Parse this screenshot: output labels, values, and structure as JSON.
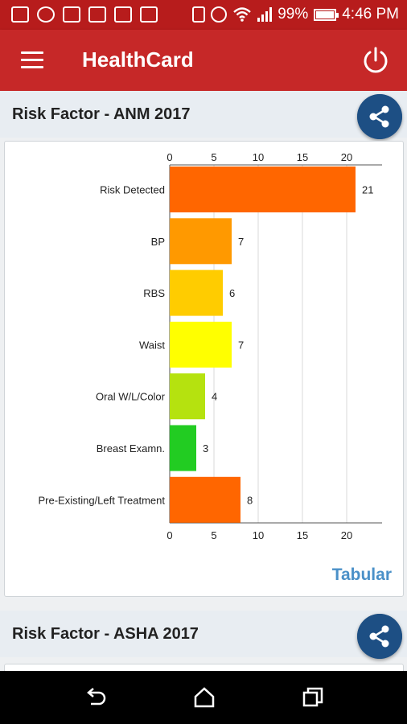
{
  "status_bar": {
    "battery": "99%",
    "time": "4:46 PM"
  },
  "app_bar": {
    "title": "HealthCard"
  },
  "section1": {
    "title": "Risk Factor - ANM 2017",
    "link": "Tabular"
  },
  "section2": {
    "title": "Risk Factor - ASHA 2017"
  },
  "chart_data": {
    "type": "bar",
    "orientation": "horizontal",
    "categories": [
      "Risk Detected",
      "BP",
      "RBS",
      "Waist",
      "Oral W/L/Color",
      "Breast Examn.",
      "Pre-Existing/Left Treatment"
    ],
    "values": [
      21,
      7,
      6,
      7,
      4,
      3,
      8
    ],
    "colors": [
      "#ff6600",
      "#ff9900",
      "#ffcc00",
      "#ffff00",
      "#b5e20f",
      "#22cc22",
      "#ff6600"
    ],
    "xlim": [
      0,
      24
    ],
    "xticks": [
      0,
      5,
      10,
      15,
      20
    ],
    "grid": true
  }
}
